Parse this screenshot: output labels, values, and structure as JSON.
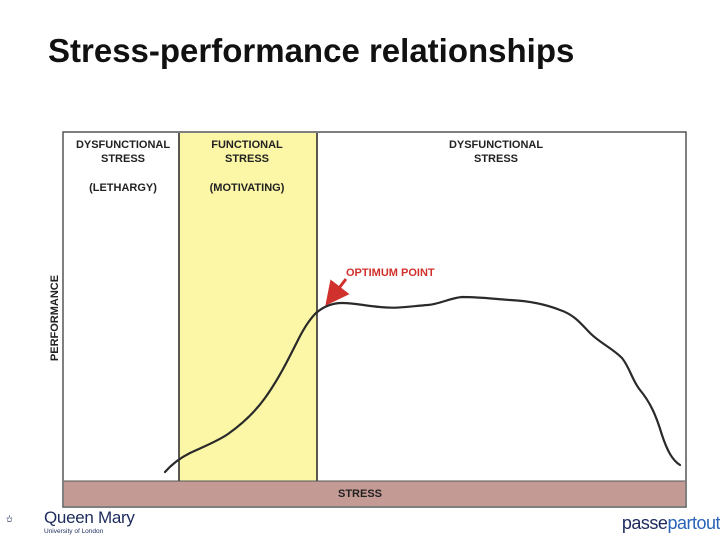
{
  "slide": {
    "title": "Stress-performance relationships"
  },
  "diagram": {
    "y_axis_label": "PERFORMANCE",
    "x_axis_label": "STRESS",
    "zones": [
      {
        "title_line1": "DYSFUNCTIONAL",
        "title_line2": "STRESS",
        "subtitle": "(LETHARGY)",
        "fill": "#ffffff"
      },
      {
        "title_line1": "FUNCTIONAL",
        "title_line2": "STRESS",
        "subtitle": "(MOTIVATING)",
        "fill": "#fbf7a6"
      },
      {
        "title_line1": "DYSFUNCTIONAL",
        "title_line2": "STRESS",
        "subtitle": "",
        "fill": "#ffffff"
      }
    ],
    "annotation": {
      "label": "OPTIMUM POINT",
      "color": "#d0312d"
    },
    "stress_bar_color": "#c49a94"
  },
  "footer": {
    "left_logo_name": "Queen Mary",
    "left_logo_sub": "University of London",
    "right_logo_part1": "passe",
    "right_logo_part2": "partout"
  }
}
